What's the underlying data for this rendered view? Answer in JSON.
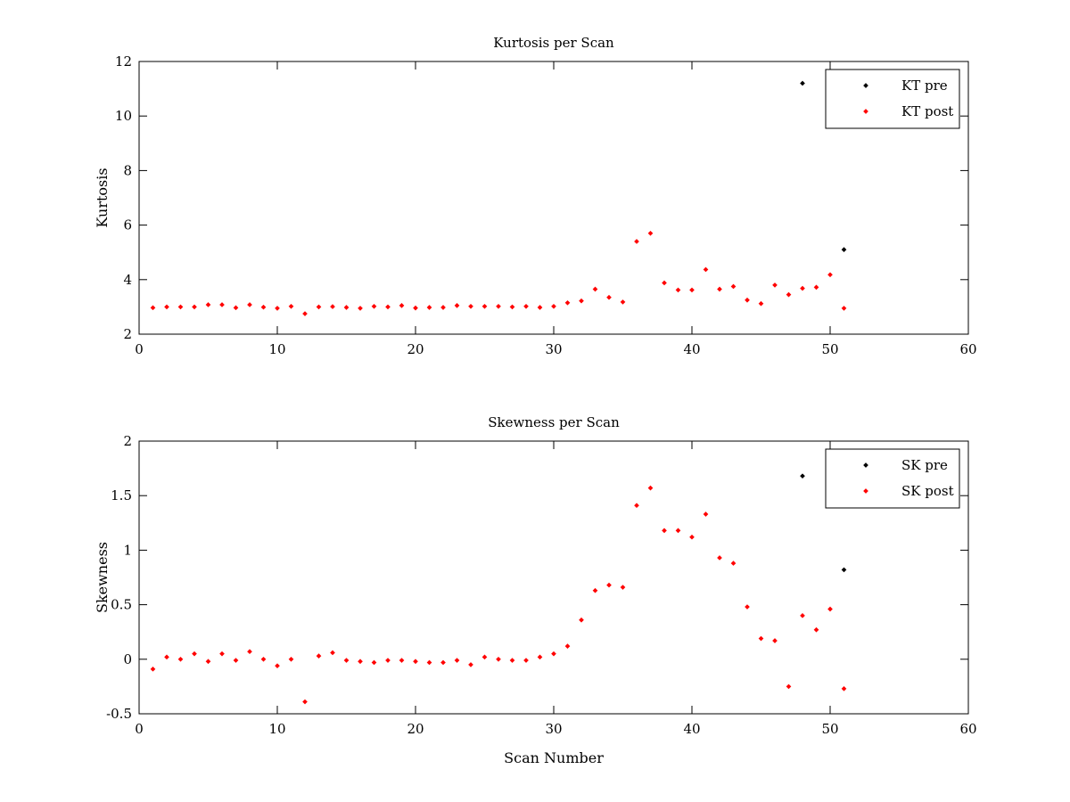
{
  "figure": {
    "background": "#ffffff",
    "colors": {
      "pre": "#000000",
      "post": "#ff0000"
    }
  },
  "chart_data": [
    {
      "type": "scatter",
      "title": "Kurtosis per Scan",
      "xlabel": "",
      "ylabel": "Kurtosis",
      "xlim": [
        0,
        60
      ],
      "ylim": [
        2,
        12
      ],
      "xticks": [
        0,
        10,
        20,
        30,
        40,
        50,
        60
      ],
      "yticks": [
        2,
        4,
        6,
        8,
        10,
        12
      ],
      "xtick_labels": [
        "0",
        "10",
        "20",
        "30",
        "40",
        "50",
        "60"
      ],
      "ytick_labels": [
        "2",
        "4",
        "6",
        "8",
        "10",
        "12"
      ],
      "grid": false,
      "legend": "top-right",
      "series": [
        {
          "name": "KT pre",
          "color": "#000000",
          "marker": "dot",
          "x": [
            48,
            51
          ],
          "y": [
            11.2,
            5.1
          ]
        },
        {
          "name": "KT post",
          "color": "#ff0000",
          "marker": "dot",
          "x": [
            1,
            2,
            3,
            4,
            5,
            6,
            7,
            8,
            9,
            10,
            11,
            12,
            13,
            14,
            15,
            16,
            17,
            18,
            19,
            20,
            21,
            22,
            23,
            24,
            25,
            26,
            27,
            28,
            29,
            30,
            31,
            32,
            33,
            34,
            35,
            36,
            37,
            38,
            39,
            40,
            41,
            42,
            43,
            44,
            45,
            46,
            47,
            48,
            49,
            50,
            51
          ],
          "y": [
            2.97,
            3.0,
            3.0,
            3.0,
            3.08,
            3.08,
            2.97,
            3.08,
            2.99,
            2.95,
            3.02,
            2.75,
            3.0,
            3.01,
            2.98,
            2.95,
            3.02,
            3.0,
            3.05,
            2.96,
            2.98,
            2.98,
            3.05,
            3.02,
            3.02,
            3.02,
            3.0,
            3.02,
            2.98,
            3.02,
            3.15,
            3.22,
            3.65,
            3.35,
            3.18,
            5.4,
            5.7,
            3.88,
            3.62,
            3.62,
            4.37,
            3.65,
            3.75,
            3.25,
            3.12,
            3.8,
            3.45,
            3.68,
            3.72,
            4.18,
            2.95
          ]
        }
      ]
    },
    {
      "type": "scatter",
      "title": "Skewness per Scan",
      "xlabel": "Scan Number",
      "ylabel": "Skewness",
      "xlim": [
        0,
        60
      ],
      "ylim": [
        -0.5,
        2
      ],
      "xticks": [
        0,
        10,
        20,
        30,
        40,
        50,
        60
      ],
      "yticks": [
        -0.5,
        0,
        0.5,
        1,
        1.5,
        2
      ],
      "xtick_labels": [
        "0",
        "10",
        "20",
        "30",
        "40",
        "50",
        "60"
      ],
      "ytick_labels": [
        "-0.5",
        "0",
        "0.5",
        "1",
        "1.5",
        "2"
      ],
      "grid": false,
      "legend": "top-right",
      "series": [
        {
          "name": "SK pre",
          "color": "#000000",
          "marker": "dot",
          "x": [
            48,
            51
          ],
          "y": [
            1.68,
            0.82
          ]
        },
        {
          "name": "SK post",
          "color": "#ff0000",
          "marker": "dot",
          "x": [
            1,
            2,
            3,
            4,
            5,
            6,
            7,
            8,
            9,
            10,
            11,
            12,
            13,
            14,
            15,
            16,
            17,
            18,
            19,
            20,
            21,
            22,
            23,
            24,
            25,
            26,
            27,
            28,
            29,
            30,
            31,
            32,
            33,
            34,
            35,
            36,
            37,
            38,
            39,
            40,
            41,
            42,
            43,
            44,
            45,
            46,
            47,
            48,
            49,
            50,
            51
          ],
          "y": [
            -0.09,
            0.02,
            0.0,
            0.05,
            -0.02,
            0.05,
            -0.01,
            0.07,
            0.0,
            -0.06,
            0.0,
            -0.39,
            0.03,
            0.06,
            -0.01,
            -0.02,
            -0.03,
            -0.01,
            -0.01,
            -0.02,
            -0.03,
            -0.03,
            -0.01,
            -0.05,
            0.02,
            0.0,
            -0.01,
            -0.01,
            0.02,
            0.05,
            0.12,
            0.36,
            0.63,
            0.68,
            0.66,
            1.41,
            1.57,
            1.18,
            1.18,
            1.12,
            1.33,
            0.93,
            0.88,
            0.48,
            0.19,
            0.17,
            -0.25,
            0.4,
            0.27,
            0.46,
            -0.27
          ]
        }
      ]
    }
  ]
}
